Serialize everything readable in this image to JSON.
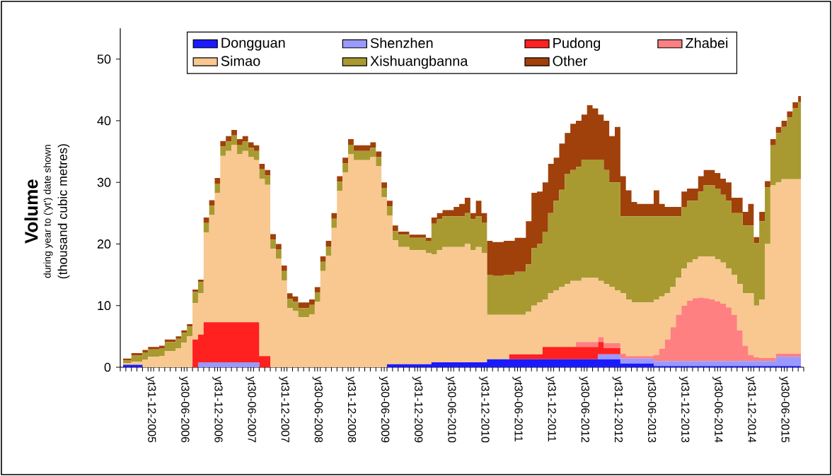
{
  "chart_data": {
    "type": "area",
    "stacked": true,
    "ylabel": "Volume",
    "annotations": [
      "during year to ('yt') date shown",
      "(thousand cubic metres)"
    ],
    "categories": [
      null,
      null,
      null,
      null,
      null,
      "yt31-12-2005",
      null,
      null,
      null,
      null,
      null,
      "yt30-06-2006",
      null,
      null,
      null,
      null,
      null,
      "yt31-12-2006",
      null,
      null,
      null,
      null,
      null,
      "yt30-06-2007",
      null,
      null,
      null,
      null,
      null,
      "yt31-12-2007",
      null,
      null,
      null,
      null,
      null,
      "yt30-06-2008",
      null,
      null,
      null,
      null,
      null,
      "yt31-12-2008",
      null,
      null,
      null,
      null,
      null,
      "yt30-06-2009",
      null,
      null,
      null,
      null,
      null,
      "yt31-12-2009",
      null,
      null,
      null,
      null,
      null,
      "yt30-06-2010",
      null,
      null,
      null,
      null,
      null,
      "yt31-12-2010",
      null,
      null,
      null,
      null,
      null,
      "yt30-06-2011",
      null,
      null,
      null,
      null,
      null,
      "yt31-12-2011",
      null,
      null,
      null,
      null,
      null,
      "yt30-06-2012",
      null,
      null,
      null,
      null,
      null,
      "yt31-12-2012",
      null,
      null,
      null,
      null,
      null,
      "yt30-06-2013",
      null,
      null,
      null,
      null,
      null,
      "yt31-12-2013",
      null,
      null,
      null,
      null,
      null,
      "yt30-06-2014",
      null,
      null,
      null,
      null,
      null,
      "yt31-12-2014",
      null,
      null,
      null,
      null,
      null,
      "yt30-06-2015",
      null,
      null,
      null
    ],
    "ylim": [
      0,
      55
    ],
    "yticks": [
      0,
      10,
      20,
      30,
      40,
      50
    ],
    "legend": "top",
    "series": [
      {
        "name": "Dongguan",
        "color": "#1a1aff",
        "values": [
          0.4,
          0.4,
          0.4,
          0.4,
          0,
          0,
          0,
          0,
          0,
          0,
          0,
          0,
          0,
          0,
          0,
          0,
          0,
          0,
          0,
          0,
          0,
          0,
          0,
          0,
          0,
          0,
          0,
          0,
          0,
          0,
          0,
          0,
          0,
          0,
          0,
          0,
          0,
          0,
          0,
          0,
          0,
          0,
          0,
          0,
          0,
          0,
          0,
          0,
          0.5,
          0.5,
          0.5,
          0.5,
          0.5,
          0.5,
          0.5,
          0.5,
          0.8,
          0.8,
          0.8,
          0.8,
          0.8,
          0.8,
          0.8,
          0.8,
          0.8,
          0.8,
          1.3,
          1.3,
          1.3,
          1.3,
          1.3,
          1.3,
          1.3,
          1.3,
          1.3,
          1.3,
          1.3,
          1.3,
          1.3,
          1.3,
          1.3,
          1.3,
          1.3,
          1.3,
          1.3,
          1.3,
          1.3,
          1.3,
          1.3,
          1.3,
          0.6,
          0.6,
          0.6,
          0.6,
          0.6,
          0.6,
          0.2,
          0.2,
          0.2,
          0.2,
          0.2,
          0.2,
          0.2,
          0.2,
          0.2,
          0.2,
          0.2,
          0.2,
          0.2,
          0.2,
          0.2,
          0.2,
          0.2,
          0.2,
          0.2,
          0.2,
          0.2,
          0.2,
          0.2,
          0.2,
          0.2,
          0.2,
          0.2
        ]
      },
      {
        "name": "Shenzhen",
        "color": "#9999ff",
        "values": [
          0,
          0,
          0,
          0,
          0,
          0,
          0,
          0,
          0,
          0,
          0,
          0,
          0,
          0,
          0.8,
          0.8,
          0.8,
          0.8,
          0.8,
          0.8,
          0.8,
          0.8,
          0.8,
          0.8,
          0.8,
          0,
          0,
          0,
          0,
          0,
          0,
          0,
          0,
          0,
          0,
          0,
          0,
          0,
          0,
          0,
          0,
          0,
          0,
          0,
          0,
          0,
          0,
          0,
          0,
          0,
          0,
          0,
          0,
          0,
          0,
          0,
          0,
          0,
          0,
          0,
          0,
          0,
          0,
          0,
          0,
          0,
          0,
          0,
          0,
          0,
          0,
          0,
          0,
          0,
          0,
          0,
          0,
          0,
          0,
          0,
          0,
          0,
          0,
          0,
          0,
          0,
          0.8,
          0.8,
          0.8,
          0.8,
          0.8,
          0.8,
          0.8,
          0.8,
          0.8,
          0.8,
          0.8,
          0.8,
          0.8,
          0.8,
          0.8,
          0.8,
          0.8,
          0.8,
          0.8,
          0.8,
          0.8,
          0.8,
          0.8,
          0.8,
          0.8,
          0.8,
          0.8,
          0.8,
          0.8,
          0.8,
          0.8,
          0.8,
          1.5,
          1.5,
          1.5,
          1.5,
          1.5
        ]
      },
      {
        "name": "Pudong",
        "color": "#ff2020",
        "values": [
          0,
          0,
          0,
          0,
          0,
          0,
          0,
          0,
          0,
          0,
          0,
          0,
          0,
          4.5,
          4.5,
          6.5,
          6.5,
          6.5,
          6.5,
          6.5,
          6.5,
          6.5,
          6.5,
          6.5,
          6.5,
          1.8,
          1.8,
          0,
          0,
          0,
          0,
          0,
          0,
          0,
          0,
          0,
          0,
          0,
          0,
          0,
          0,
          0,
          0,
          0,
          0,
          0,
          0,
          0,
          0,
          0,
          0,
          0,
          0,
          0,
          0,
          0,
          0,
          0,
          0,
          0,
          0,
          0,
          0,
          0,
          0,
          0,
          0,
          0,
          0,
          0,
          0.8,
          0.8,
          0.8,
          0.8,
          0.8,
          0.8,
          2,
          2,
          2,
          2,
          2,
          2,
          2,
          2,
          2,
          2,
          2,
          1,
          1,
          1,
          0,
          0,
          0,
          0,
          0,
          0,
          0,
          0,
          0,
          0,
          0,
          0,
          0,
          0,
          0,
          0,
          0,
          0,
          0,
          0,
          0,
          0,
          0,
          0,
          0,
          0,
          0,
          0,
          0,
          0,
          0,
          0,
          0
        ]
      },
      {
        "name": "Zhabei",
        "color": "#ff8080",
        "values": [
          0,
          0,
          0,
          0,
          0,
          0,
          0,
          0,
          0,
          0,
          0,
          0,
          0,
          0,
          0,
          0,
          0,
          0,
          0,
          0,
          0,
          0,
          0,
          0,
          0,
          0,
          0,
          0,
          0,
          0,
          0,
          0,
          0,
          0,
          0,
          0,
          0,
          0,
          0,
          0,
          0,
          0,
          0,
          0,
          0,
          0,
          0,
          0,
          0,
          0,
          0,
          0,
          0,
          0,
          0,
          0,
          0,
          0,
          0,
          0,
          0,
          0,
          0,
          0,
          0,
          0,
          0,
          0,
          0,
          0,
          0,
          0,
          0,
          0,
          0,
          0,
          0,
          0,
          0,
          0,
          0,
          0,
          0.8,
          0.8,
          0.8,
          0.8,
          0.8,
          0.8,
          0.8,
          0.8,
          0.8,
          0.4,
          0.4,
          0.4,
          0.4,
          0.4,
          1,
          2,
          3.5,
          5.5,
          7.5,
          9,
          9.8,
          10.2,
          10.3,
          10.2,
          10,
          9.7,
          9.3,
          8.7,
          7.5,
          5,
          2.5,
          1,
          0.6,
          0.5,
          0.5,
          0.5,
          0.5,
          0.5,
          0.5,
          0.5,
          0.5
        ]
      },
      {
        "name": "Simao",
        "color": "#f8c890",
        "values": [
          0.3,
          0.3,
          0.5,
          0.5,
          1.2,
          1.7,
          1.7,
          1.8,
          2.6,
          2.6,
          3.1,
          4,
          5,
          5.9,
          6.7,
          14.6,
          17.4,
          21,
          27,
          27.8,
          28.8,
          27.3,
          27.8,
          26.8,
          26.3,
          28.8,
          27.8,
          19.2,
          17.6,
          14.1,
          9.6,
          9.1,
          8.1,
          8.1,
          8.6,
          10.6,
          15.6,
          18.1,
          22.6,
          28.6,
          31.6,
          34.6,
          33.6,
          33.6,
          33.6,
          34.1,
          32.6,
          27.6,
          24.1,
          20.1,
          19,
          19,
          18.5,
          18.5,
          18.5,
          18,
          17.5,
          18.2,
          18.7,
          18.7,
          18.7,
          18.7,
          19.2,
          18.2,
          18.7,
          17.7,
          7.2,
          7.2,
          7.2,
          7.2,
          6.4,
          6.4,
          6.4,
          6.9,
          7.9,
          8.4,
          7.7,
          8.7,
          9.2,
          9.7,
          10.2,
          10.7,
          9.9,
          10.4,
          10.4,
          10.4,
          9.1,
          9.6,
          9.1,
          8.6,
          9.8,
          9.2,
          8.7,
          8.7,
          8.7,
          8.7,
          9,
          8.5,
          7.5,
          6.5,
          6,
          6,
          6.2,
          6.3,
          6.7,
          6.8,
          7,
          6.8,
          6.7,
          6.3,
          6.5,
          7.5,
          8.5,
          10,
          8.4,
          9.5,
          18.5,
          28,
          27.8,
          28.3,
          28.3,
          28.3,
          28.3
        ]
      },
      {
        "name": "Xishuangbanna",
        "color": "#a89a30",
        "values": [
          0.4,
          0.4,
          1,
          1,
          1.2,
          1.2,
          1.2,
          1.3,
          1.5,
          1.5,
          1.5,
          1.6,
          1.6,
          1.8,
          1.8,
          1.5,
          1.5,
          1.5,
          1.5,
          1.5,
          1.5,
          1.5,
          1.5,
          1.5,
          1.5,
          1.5,
          1.5,
          1.5,
          1.5,
          1.5,
          1.5,
          1.5,
          1.5,
          1.5,
          1.5,
          1.5,
          1.5,
          1.5,
          1.5,
          1.5,
          1.5,
          1.5,
          1.5,
          1.5,
          1.5,
          1.5,
          1.5,
          1.5,
          1.5,
          1.5,
          2,
          2,
          2,
          2,
          2,
          2,
          5,
          5,
          5,
          5,
          5,
          5,
          5,
          5,
          5,
          5,
          6.5,
          6.3,
          6.3,
          6.5,
          6.5,
          7,
          7,
          7.7,
          9.3,
          9.5,
          11,
          13,
          14.5,
          15.8,
          17.9,
          18,
          18.5,
          19.2,
          19.2,
          19.2,
          19.7,
          18.5,
          17,
          17.5,
          12.5,
          13.5,
          14,
          14,
          14,
          14,
          13.5,
          13,
          12.5,
          11.5,
          10,
          10,
          10,
          9.5,
          10.5,
          11.5,
          11.5,
          11.5,
          11,
          11,
          10,
          11.5,
          11,
          11,
          10.1,
          12.7,
          9.2,
          6.5,
          8,
          8.5,
          10,
          11.5,
          12.5
        ]
      },
      {
        "name": "Other",
        "color": "#a0400a",
        "values": [
          0.3,
          0.3,
          0.4,
          0.4,
          0.4,
          0.4,
          0.4,
          0.4,
          0.4,
          0.4,
          0.4,
          0.4,
          0.4,
          0.4,
          0.4,
          0.9,
          0.9,
          0.9,
          0.9,
          0.9,
          0.9,
          0.9,
          0.9,
          0.9,
          0.9,
          0.9,
          0.9,
          0.9,
          0.9,
          0.9,
          0.9,
          0.9,
          0.9,
          0.9,
          0.9,
          0.9,
          0.9,
          0.9,
          0.9,
          0.9,
          0.9,
          0.9,
          0.9,
          0.9,
          0.9,
          0.9,
          0.9,
          0.9,
          0.9,
          0.9,
          0.5,
          0.5,
          0.5,
          0.5,
          0.5,
          0.5,
          1,
          1,
          1,
          1,
          1.5,
          2,
          2.5,
          1,
          2.5,
          1.5,
          5.5,
          5.5,
          5.5,
          5.5,
          5.5,
          5.5,
          5.5,
          7,
          9,
          8.5,
          8,
          8,
          7,
          7.5,
          6.6,
          7.5,
          7.5,
          7.3,
          8.8,
          8.3,
          7.3,
          8,
          7.5,
          9,
          6.5,
          4.2,
          2.3,
          2,
          2,
          2,
          4.2,
          2,
          1.5,
          1.5,
          1.5,
          2.5,
          2,
          2,
          2.5,
          2.5,
          2.5,
          2.5,
          2.6,
          3,
          2.5,
          2.5,
          2.2,
          3.5,
          1,
          1.5,
          1,
          1,
          1,
          1,
          1,
          1,
          1
        ]
      }
    ]
  }
}
